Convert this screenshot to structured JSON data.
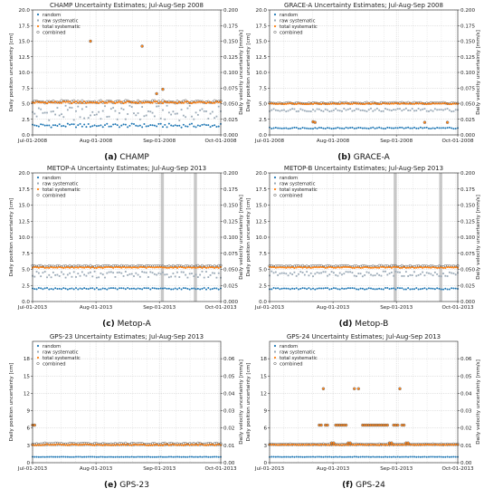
{
  "chart_data": [
    {
      "type": "scatter",
      "title": "CHAMP Uncertainty Estimates; Jul-Aug-Sep 2008",
      "caption_label": "(a)",
      "caption_text": " CHAMP",
      "ylabel": "Daily position uncertainty [cm]",
      "y2label": "Daily velocity uncertainty [mm/s]",
      "ylim": [
        0,
        20
      ],
      "yticks": [
        "0.0",
        "2.5",
        "5.0",
        "7.5",
        "10.0",
        "12.5",
        "15.0",
        "17.5",
        "20.0"
      ],
      "y2ticks": [
        "0.000",
        "0.025",
        "0.050",
        "0.075",
        "0.100",
        "0.125",
        "0.150",
        "0.175",
        "0.200"
      ],
      "xticks": [
        "Jul-01-2008",
        "Aug-01-2008",
        "Sep-01-2008",
        "Oct-01-2008"
      ],
      "legend": [
        "random",
        "raw systematic",
        "total systematic",
        "combined"
      ],
      "days": 92,
      "series": {
        "random": {
          "base": 1.5,
          "amp": 0.3
        },
        "raw_systematic": {
          "base": 3.5,
          "amp": 1.2
        },
        "total_systematic": {
          "base": 5.2,
          "amp": 0.15
        },
        "combined": {
          "base": 5.3,
          "amp": 0.2
        }
      },
      "outliers": [
        [
          28,
          15.0
        ],
        [
          53,
          14.2
        ],
        [
          60,
          6.6
        ],
        [
          63,
          7.3
        ]
      ],
      "bands": []
    },
    {
      "type": "scatter",
      "title": "GRACE-A Uncertainty Estimates; Jul-Aug-Sep 2008",
      "caption_label": "(b)",
      "caption_text": " GRACE-A",
      "ylabel": "Daily position uncertainty [cm]",
      "y2label": "Daily velocity uncertainty [mm/s]",
      "ylim": [
        0,
        20
      ],
      "yticks": [
        "0.0",
        "2.5",
        "5.0",
        "7.5",
        "10.0",
        "12.5",
        "15.0",
        "17.5",
        "20.0"
      ],
      "y2ticks": [
        "0.000",
        "0.025",
        "0.050",
        "0.075",
        "0.100",
        "0.125",
        "0.150",
        "0.175",
        "0.200"
      ],
      "xticks": [
        "Jul-01-2008",
        "Aug-01-2008",
        "Sep-01-2008",
        "Oct-01-2008"
      ],
      "legend": [
        "random",
        "raw systematic",
        "total systematic",
        "combined"
      ],
      "days": 92,
      "series": {
        "random": {
          "base": 1.1,
          "amp": 0.1
        },
        "raw_systematic": {
          "base": 4.0,
          "amp": 0.25
        },
        "total_systematic": {
          "base": 5.0,
          "amp": 0.08
        },
        "combined": {
          "base": 5.1,
          "amp": 0.1
        }
      },
      "outliers": [
        [
          21,
          2.1
        ],
        [
          22,
          2.0
        ],
        [
          75,
          2.0
        ],
        [
          86,
          2.0
        ]
      ],
      "bands": []
    },
    {
      "type": "scatter",
      "title": "METOP-A Uncertainty Estimates; Jul-Aug-Sep 2013",
      "caption_label": "(c)",
      "caption_text": " Metop-A",
      "ylabel": "Daily position uncertainty [cm]",
      "y2label": "Daily velocity uncertainty [mm/s]",
      "ylim": [
        0,
        20
      ],
      "yticks": [
        "0.0",
        "2.5",
        "5.0",
        "7.5",
        "10.0",
        "12.5",
        "15.0",
        "17.5",
        "20.0"
      ],
      "y2ticks": [
        "0.000",
        "0.025",
        "0.050",
        "0.075",
        "0.100",
        "0.125",
        "0.150",
        "0.175",
        "0.200"
      ],
      "xticks": [
        "Jul-01-2013",
        "Aug-01-2013",
        "Sep-01-2013",
        "Oct-01-2013"
      ],
      "legend": [
        "random",
        "raw systematic",
        "total systematic",
        "combined"
      ],
      "days": 92,
      "series": {
        "random": {
          "base": 2.0,
          "amp": 0.12
        },
        "raw_systematic": {
          "base": 4.2,
          "amp": 0.5
        },
        "total_systematic": {
          "base": 5.3,
          "amp": 0.08
        },
        "combined": {
          "base": 5.5,
          "amp": 0.1
        }
      },
      "outliers": [],
      "bands": [
        [
          62,
          63.5
        ],
        [
          78,
          79.5
        ]
      ]
    },
    {
      "type": "scatter",
      "title": "METOP-B Uncertainty Estimates; Jul-Aug-Sep 2013",
      "caption_label": "(d)",
      "caption_text": " Metop-B",
      "ylabel": "Daily position uncertainty [cm]",
      "y2label": "Daily velocity uncertainty [mm/s]",
      "ylim": [
        0,
        20
      ],
      "yticks": [
        "0.0",
        "2.5",
        "5.0",
        "7.5",
        "10.0",
        "12.5",
        "15.0",
        "17.5",
        "20.0"
      ],
      "y2ticks": [
        "0.000",
        "0.025",
        "0.050",
        "0.075",
        "0.100",
        "0.125",
        "0.150",
        "0.175",
        "0.200"
      ],
      "xticks": [
        "Jul-01-2013",
        "Aug-01-2013",
        "Sep-01-2013",
        "Oct-01-2013"
      ],
      "legend": [
        "random",
        "raw systematic",
        "total systematic",
        "combined"
      ],
      "days": 92,
      "series": {
        "random": {
          "base": 2.0,
          "amp": 0.12
        },
        "raw_systematic": {
          "base": 4.3,
          "amp": 0.4
        },
        "total_systematic": {
          "base": 5.3,
          "amp": 0.08
        },
        "combined": {
          "base": 5.5,
          "amp": 0.1
        }
      },
      "outliers": [],
      "bands": [
        [
          60,
          61.5
        ],
        [
          82,
          83.5
        ]
      ]
    },
    {
      "type": "scatter",
      "title": "GPS-23 Uncertainty Estimates; Jul-Aug-Sep 2013",
      "caption_label": "(e)",
      "caption_text": " GPS-23",
      "ylabel": "Daily position uncertainty [cm]",
      "y2label": "Daily velocity uncertainty [mm/s]",
      "ylim": [
        0,
        21
      ],
      "yticks": [
        "0",
        "3",
        "6",
        "9",
        "12",
        "15",
        "18"
      ],
      "y2ticks": [
        "0.00",
        "0.01",
        "0.02",
        "0.03",
        "0.04",
        "0.05",
        "0.06"
      ],
      "xticks": [
        "Jul-01-2013",
        "Aug-01-2013",
        "Sep-01-2013",
        "Oct-01-2013"
      ],
      "legend": [
        "random",
        "raw systematic",
        "total systematic",
        "combined"
      ],
      "days": 92,
      "series": {
        "random": {
          "base": 1.0,
          "amp": 0.03
        },
        "raw_systematic": {
          "base": 3.0,
          "amp": 0.05
        },
        "total_systematic": {
          "base": 3.1,
          "amp": 0.1
        },
        "combined": {
          "base": 3.3,
          "amp": 0.12
        }
      },
      "outliers": [
        [
          0,
          6.5
        ],
        [
          1,
          6.5
        ]
      ],
      "bands": []
    },
    {
      "type": "scatter",
      "title": "GPS-24 Uncertainty Estimates; Jul-Aug-Sep 2013",
      "caption_label": "(f)",
      "caption_text": " GPS-24",
      "ylabel": "Daily position uncertainty [cm]",
      "y2label": "Daily velocity uncertainty [mm/s]",
      "ylim": [
        0,
        21
      ],
      "yticks": [
        "0",
        "3",
        "6",
        "9",
        "12",
        "15",
        "18"
      ],
      "y2ticks": [
        "0.00",
        "0.01",
        "0.02",
        "0.03",
        "0.04",
        "0.05",
        "0.06"
      ],
      "xticks": [
        "Jul-01-2013",
        "Aug-01-2013",
        "Sep-01-2013",
        "Oct-01-2013"
      ],
      "legend": [
        "random",
        "raw systematic",
        "total systematic",
        "combined"
      ],
      "days": 92,
      "series": {
        "random": {
          "base": 1.0,
          "amp": 0.03
        },
        "raw_systematic": {
          "base": 3.0,
          "amp": 0.05
        },
        "total_systematic": {
          "base": 3.1,
          "amp": 0.05
        },
        "combined": {
          "base": 3.2,
          "amp": 0.06
        }
      },
      "outliers": [
        [
          26,
          12.8
        ],
        [
          41,
          12.8
        ],
        [
          43,
          12.8
        ],
        [
          63,
          12.8
        ],
        [
          24,
          6.5
        ],
        [
          25,
          6.5
        ],
        [
          27,
          6.5
        ],
        [
          28,
          6.5
        ],
        [
          32,
          6.5
        ],
        [
          33,
          6.5
        ],
        [
          34,
          6.5
        ],
        [
          35,
          6.5
        ],
        [
          36,
          6.5
        ],
        [
          37,
          6.5
        ],
        [
          45,
          6.5
        ],
        [
          46,
          6.5
        ],
        [
          47,
          6.5
        ],
        [
          48,
          6.5
        ],
        [
          49,
          6.5
        ],
        [
          50,
          6.5
        ],
        [
          51,
          6.5
        ],
        [
          52,
          6.5
        ],
        [
          53,
          6.5
        ],
        [
          54,
          6.5
        ],
        [
          55,
          6.5
        ],
        [
          56,
          6.5
        ],
        [
          57,
          6.5
        ],
        [
          60,
          6.5
        ],
        [
          61,
          6.5
        ],
        [
          62,
          6.5
        ],
        [
          64,
          6.5
        ],
        [
          65,
          6.5
        ],
        [
          30,
          3.4
        ],
        [
          31,
          3.4
        ],
        [
          38,
          3.4
        ],
        [
          39,
          3.4
        ],
        [
          58,
          3.4
        ],
        [
          59,
          3.4
        ],
        [
          66,
          3.4
        ],
        [
          67,
          3.4
        ]
      ],
      "bands": []
    }
  ],
  "colors": {
    "random": "#1f77b4",
    "raw_systematic": "#9aa9b6",
    "total_systematic": "#ff7f0e",
    "combined": "#555555",
    "band": "#c8c8c8"
  }
}
